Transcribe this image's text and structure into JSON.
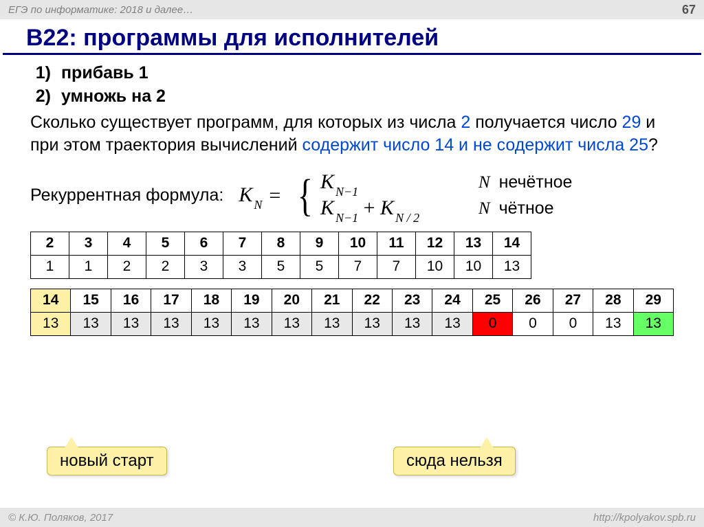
{
  "header": {
    "left": "ЕГЭ по информатике: 2018 и далее…",
    "page": "67"
  },
  "title": "B22: программы для исполнителей",
  "operations": [
    {
      "n": "1)",
      "text": "прибавь 1"
    },
    {
      "n": "2)",
      "text": "умножь на 2"
    }
  ],
  "question": {
    "p1": "Сколько существует программ, для которых из числа ",
    "n1": "2",
    "p2": " получается число ",
    "n2": "29",
    "p3": " и при этом траектория вычислений ",
    "cond": "содержит число 14 и не содержит числа 25",
    "qm": "?"
  },
  "formula": {
    "label": "Рекуррентная формула:",
    "lhs": "K",
    "lhs_sub": "N",
    "eq": "=",
    "case1_k": "K",
    "case1_sub": "N−1",
    "case2_ka": "K",
    "case2_suba": "N−1",
    "case2_plus": " + ",
    "case2_kb": "K",
    "case2_subb": "N / 2",
    "cond1_n": "N",
    "cond1": " нечётное",
    "cond2_n": "N",
    "cond2": " чётное"
  },
  "table1": {
    "header": [
      "2",
      "3",
      "4",
      "5",
      "6",
      "7",
      "8",
      "9",
      "10",
      "11",
      "12",
      "13",
      "14"
    ],
    "row": [
      "1",
      "1",
      "2",
      "2",
      "3",
      "3",
      "5",
      "5",
      "7",
      "7",
      "10",
      "10",
      "13"
    ]
  },
  "table2": {
    "header": [
      "14",
      "15",
      "16",
      "17",
      "18",
      "19",
      "20",
      "21",
      "22",
      "23",
      "24",
      "25",
      "26",
      "27",
      "28",
      "29"
    ],
    "row": [
      "13",
      "13",
      "13",
      "13",
      "13",
      "13",
      "13",
      "13",
      "13",
      "13",
      "13",
      "0",
      "0",
      "0",
      "13",
      "13"
    ],
    "hl_header": {
      "0": "hl-yellow"
    },
    "hl_row": {
      "0": "hl-yellow",
      "11": "hl-red",
      "15": "hl-green"
    },
    "gray_cols": [
      1,
      2,
      3,
      4,
      5,
      6,
      7,
      8,
      9,
      10
    ]
  },
  "callouts": {
    "c1": "новый старт",
    "c2": "сюда нельзя"
  },
  "footer": {
    "left": "© К.Ю. Поляков, 2017",
    "right": "http://kpolyakov.spb.ru"
  }
}
